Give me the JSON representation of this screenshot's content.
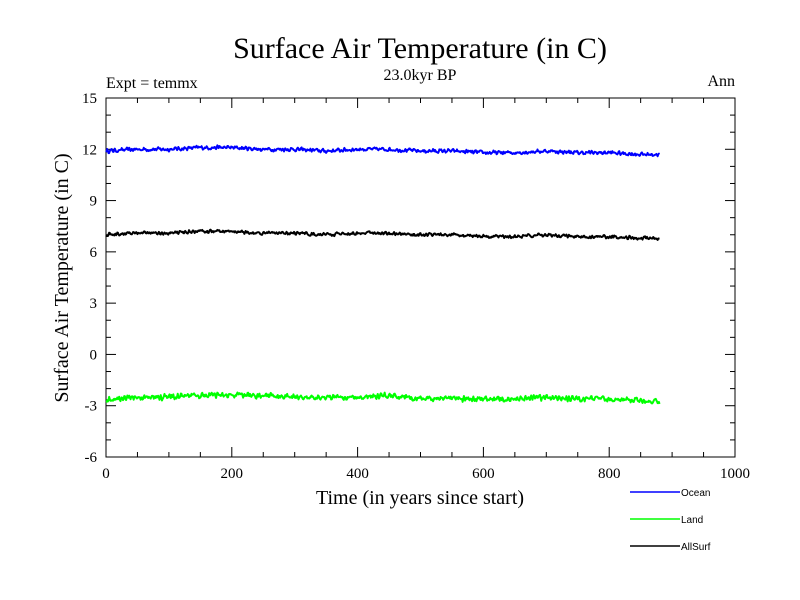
{
  "chart_data": {
    "type": "line",
    "title": "Surface Air Temperature (in C)",
    "subtitle": "23.0kyr BP",
    "left_label": "Expt = temmx",
    "right_label": "Ann",
    "xlabel": "Time (in years since start)",
    "ylabel": "Surface Air Temperature (in C)",
    "xlim": [
      0,
      1000
    ],
    "ylim": [
      -6,
      15
    ],
    "x_ticks": [
      "0",
      "200",
      "400",
      "600",
      "800",
      "1000"
    ],
    "y_ticks": [
      "-6",
      "-3",
      "0",
      "3",
      "6",
      "9",
      "12",
      "15"
    ],
    "grid": false,
    "legend_position": "bottom-right",
    "series": [
      {
        "name": "Ocean",
        "color": "#0000ff",
        "x": [
          0,
          50,
          100,
          150,
          200,
          250,
          300,
          350,
          400,
          450,
          500,
          550,
          600,
          650,
          700,
          750,
          800,
          850,
          880
        ],
        "values": [
          11.9,
          12.0,
          12.0,
          12.1,
          12.1,
          12.0,
          12.0,
          11.9,
          12.0,
          12.0,
          11.9,
          11.9,
          11.8,
          11.8,
          11.9,
          11.8,
          11.8,
          11.7,
          11.7
        ]
      },
      {
        "name": "Land",
        "color": "#00ff00",
        "x": [
          0,
          50,
          100,
          150,
          200,
          250,
          300,
          350,
          400,
          450,
          500,
          550,
          600,
          650,
          700,
          750,
          800,
          850,
          880
        ],
        "values": [
          -2.7,
          -2.5,
          -2.5,
          -2.4,
          -2.4,
          -2.4,
          -2.5,
          -2.5,
          -2.5,
          -2.4,
          -2.6,
          -2.6,
          -2.6,
          -2.6,
          -2.5,
          -2.6,
          -2.6,
          -2.7,
          -2.8
        ]
      },
      {
        "name": "AllSurf",
        "color": "#000000",
        "x": [
          0,
          50,
          100,
          150,
          200,
          250,
          300,
          350,
          400,
          450,
          500,
          550,
          600,
          650,
          700,
          750,
          800,
          850,
          880
        ],
        "values": [
          7.0,
          7.1,
          7.1,
          7.2,
          7.2,
          7.1,
          7.1,
          7.0,
          7.1,
          7.1,
          7.0,
          7.0,
          6.9,
          6.9,
          7.0,
          6.9,
          6.9,
          6.8,
          6.8
        ]
      }
    ]
  }
}
